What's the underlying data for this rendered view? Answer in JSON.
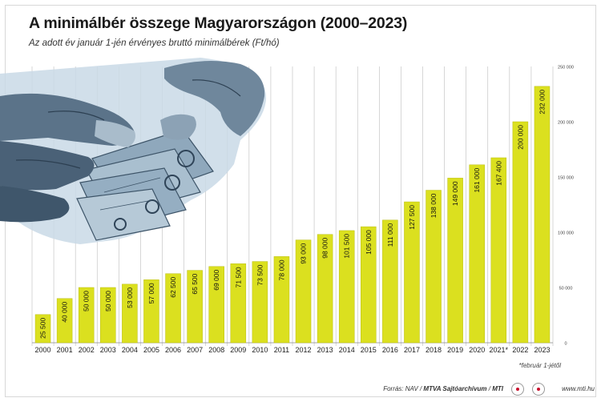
{
  "header": {
    "title": "A minimálbér összege Magyarországon (2000–2023)",
    "subtitle": "Az adott év január 1-jén érvényes bruttó minimálbérek (Ft/hó)"
  },
  "footer": {
    "source_prefix": "Forrás: NAV / ",
    "source_bold": "MTVA Sajtóarchívum",
    "source_sep": " / ",
    "source_bold2": "MTI",
    "website": "www.mti.hu",
    "footnote": "*február 1-jétől"
  },
  "colors": {
    "bar": "#dbe01f",
    "bar_edge": "#b9bd10",
    "grid": "#bdbdbd"
  },
  "icons": {
    "photo": "hands-holding-banknotes-photo",
    "logo1": "mtva-logo-icon",
    "logo2": "mti-logo-icon"
  },
  "chart_data": {
    "type": "bar",
    "title": "A minimálbér összege Magyarországon (2000–2023)",
    "subtitle": "Az adott év január 1-jén érvényes bruttó minimálbérek (Ft/hó)",
    "categories": [
      "2000",
      "2001",
      "2002",
      "2003",
      "2004",
      "2005",
      "2006",
      "2007",
      "2008",
      "2009",
      "2010",
      "2011",
      "2012",
      "2013",
      "2014",
      "2015",
      "2016",
      "2017",
      "2018",
      "2019",
      "2020",
      "2021*",
      "2022",
      "2023"
    ],
    "values": [
      25500,
      40000,
      50000,
      50000,
      53000,
      57000,
      62500,
      65500,
      69000,
      71500,
      73500,
      78000,
      93000,
      98000,
      101500,
      105000,
      111000,
      127500,
      138000,
      149000,
      161000,
      167400,
      200000,
      232000
    ],
    "value_labels": [
      "25 500",
      "40 000",
      "50 000",
      "50 000",
      "53 000",
      "57 000",
      "62 500",
      "65 500",
      "69 000",
      "71 500",
      "73 500",
      "78 000",
      "93 000",
      "98 000",
      "101 500",
      "105 000",
      "111 000",
      "127 500",
      "138 000",
      "149 000",
      "161 000",
      "167 400",
      "200 000",
      "232 000"
    ],
    "y_ticks": [
      0,
      50000,
      100000,
      150000,
      200000,
      250000
    ],
    "y_tick_labels": [
      "0",
      "50 000",
      "100 000",
      "150 000",
      "200 000",
      "250 000"
    ],
    "ylim": [
      0,
      250000
    ],
    "axis_side": "right",
    "grid": true
  }
}
